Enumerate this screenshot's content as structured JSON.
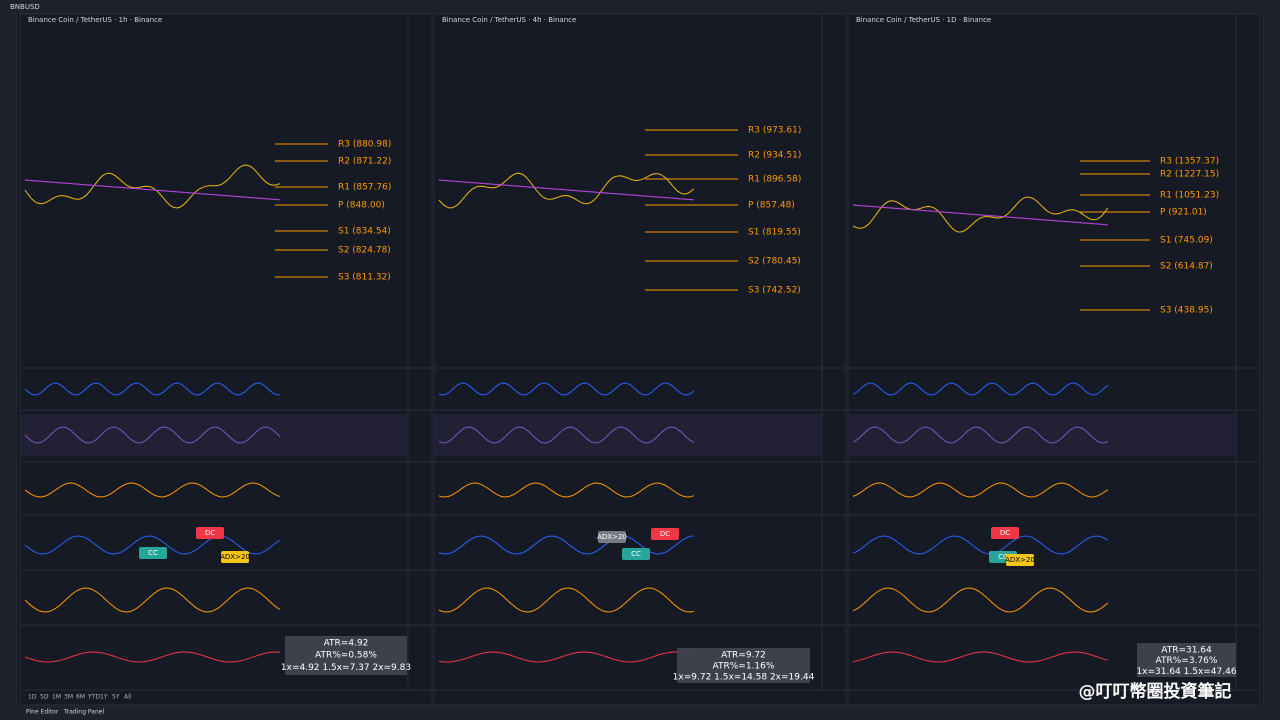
{
  "toolbar": {
    "symbol": "BNBUSD"
  },
  "panels": [
    {
      "title": "Binance Coin / TetherUS · 1h · Binance",
      "pivots": [
        "R3 (880.98)",
        "R2 (871.22)",
        "R1 (857.76)",
        "P (848.00)",
        "S1 (834.54)",
        "S2 (824.78)",
        "S3 (811.32)"
      ],
      "signals": [
        "DC",
        "CC",
        "ADX>20"
      ],
      "atr": [
        "ATR=4.92",
        "ATR%=0.58%",
        "1x=4.92  1.5x=7.37  2x=9.83"
      ]
    },
    {
      "title": "Binance Coin / TetherUS · 4h · Binance",
      "pivots": [
        "R3 (973.61)",
        "R2 (934.51)",
        "R1 (896.58)",
        "P (857.48)",
        "S1 (819.55)",
        "S2 (780.45)",
        "S3 (742.52)"
      ],
      "signals": [
        "ADX>20",
        "CC",
        "DC"
      ],
      "atr": [
        "ATR=9.72",
        "ATR%=1.16%",
        "1x=9.72  1.5x=14.58  2x=19.44"
      ]
    },
    {
      "title": "Binance Coin / TetherUS · 1D · Binance",
      "pivots": [
        "R3 (1357.37)",
        "R2 (1227.15)",
        "R1 (1051.23)",
        "P (921.01)",
        "S1 (745.09)",
        "S2 (614.87)",
        "S3 (438.95)"
      ],
      "signals": [
        "DC",
        "CC",
        "ADX>20"
      ],
      "atr": [
        "ATR=31.64",
        "ATR%=3.76%",
        "1x=31.64  1.5x=47.46"
      ]
    }
  ],
  "ranges": [
    "1D",
    "5D",
    "1M",
    "3M",
    "6M",
    "YTD",
    "1Y",
    "5Y",
    "All"
  ],
  "bottom_tabs": [
    "Pine Editor",
    "Trading Panel"
  ],
  "watermark": "@叮叮幣圈投資筆記"
}
